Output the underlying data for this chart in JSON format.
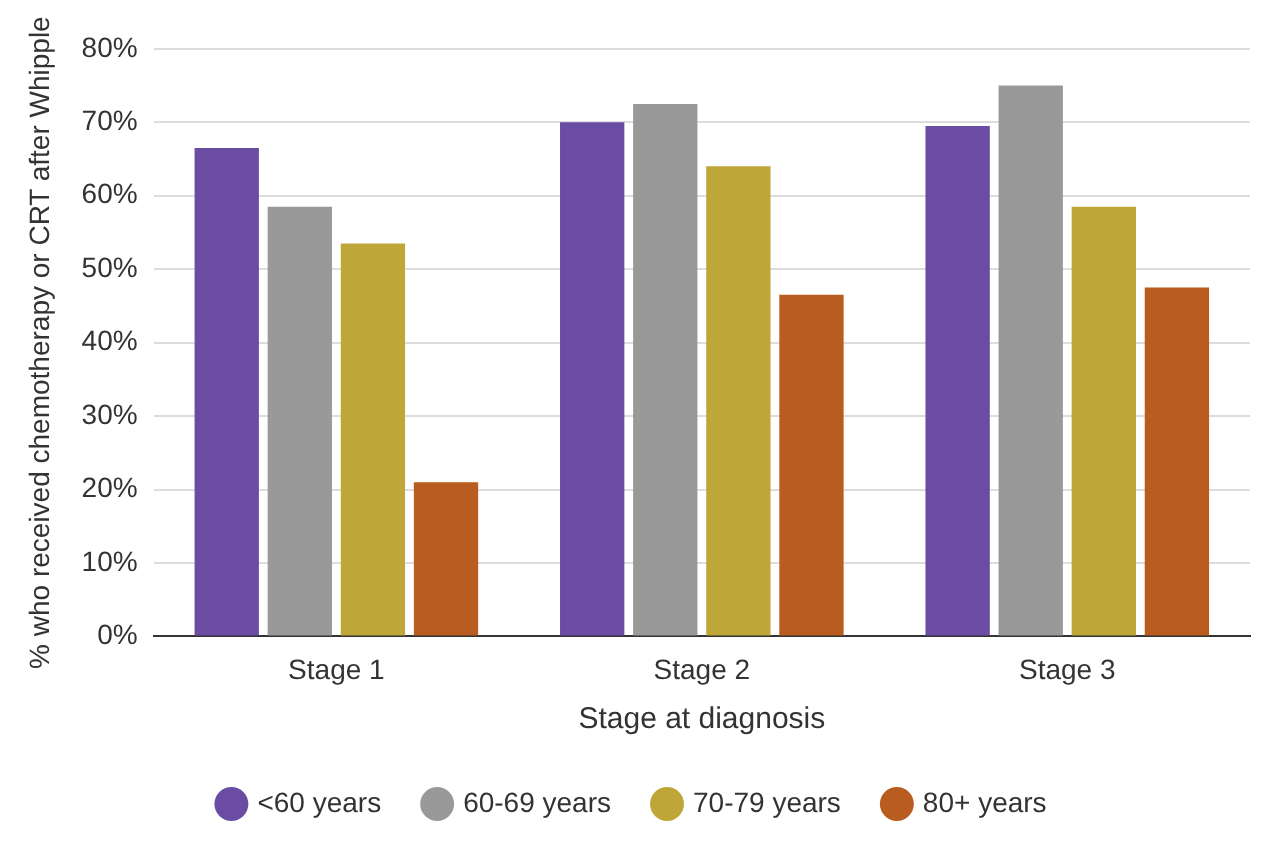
{
  "chart_data": {
    "type": "bar",
    "xlabel": "Stage at diagnosis",
    "ylabel": "% who received chemotherapy or CRT after Whipple",
    "categories": [
      "Stage 1",
      "Stage 2",
      "Stage 3"
    ],
    "series": [
      {
        "name": "<60 years",
        "color": "#6a4ca3",
        "values": [
          66.5,
          70,
          69.5
        ]
      },
      {
        "name": "60-69 years",
        "color": "#999999",
        "values": [
          58.5,
          72.5,
          75
        ]
      },
      {
        "name": "70-79 years",
        "color": "#bfa639",
        "values": [
          53.5,
          64,
          58.5
        ]
      },
      {
        "name": "80+ years",
        "color": "#b85c1f",
        "values": [
          21,
          46.5,
          47.5
        ]
      }
    ],
    "ylim": [
      0,
      80
    ],
    "yticks": [
      {
        "value": 0,
        "label": "0%"
      },
      {
        "value": 10,
        "label": "10%"
      },
      {
        "value": 20,
        "label": "20%"
      },
      {
        "value": 30,
        "label": "30%"
      },
      {
        "value": 40,
        "label": "40%"
      },
      {
        "value": 50,
        "label": "50%"
      },
      {
        "value": 60,
        "label": "60%"
      },
      {
        "value": 70,
        "label": "70%"
      },
      {
        "value": 80,
        "label": "80%"
      }
    ],
    "grid": "y",
    "legend": "bottom"
  }
}
